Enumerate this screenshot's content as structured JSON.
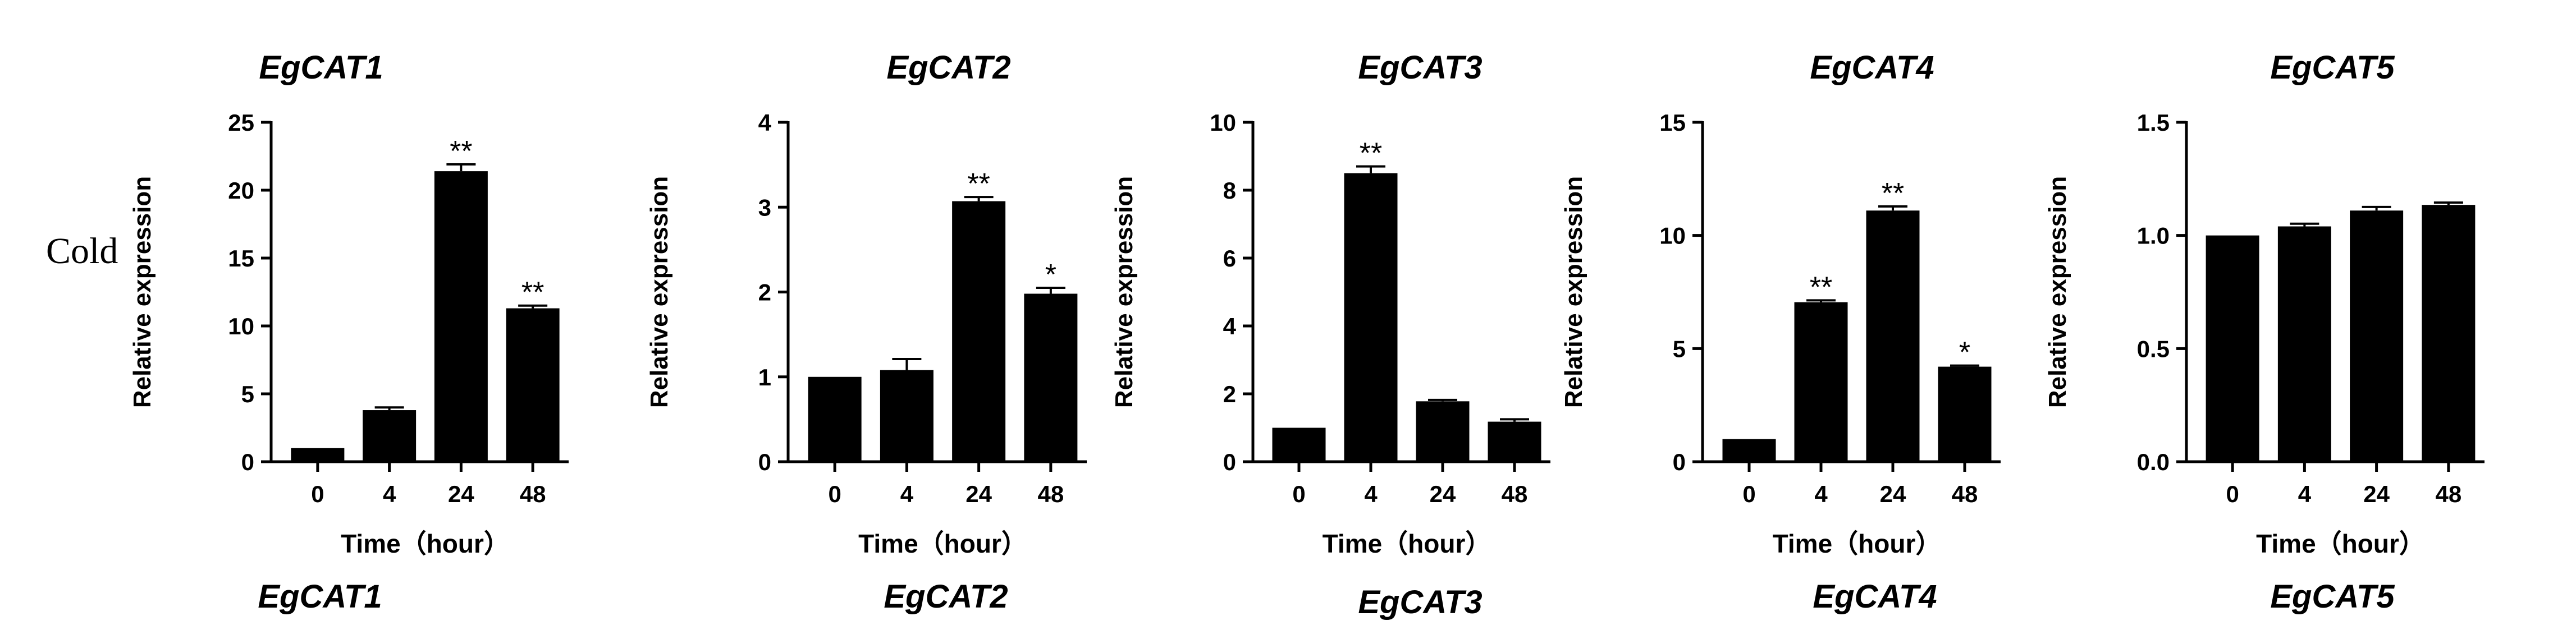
{
  "row_label": "Cold",
  "bottom_titles": [
    "EgCAT1",
    "EgCAT2",
    "EgCAT3",
    "EgCAT4",
    "EgCAT5"
  ],
  "chart_data": [
    {
      "type": "bar",
      "title": "EgCAT1",
      "xlabel": "Time（hour）",
      "ylabel": "Relative expression",
      "categories": [
        "0",
        "4",
        "24",
        "48"
      ],
      "values": [
        1.0,
        3.8,
        21.4,
        11.3
      ],
      "errors": [
        0.0,
        0.2,
        0.5,
        0.2
      ],
      "significance": [
        "",
        "",
        "**",
        "**"
      ],
      "ylim": [
        0,
        25
      ],
      "yticks": [
        0,
        5,
        10,
        15,
        20,
        25
      ],
      "ytick_labels": [
        "0",
        "5",
        "10",
        "15",
        "20",
        "25"
      ]
    },
    {
      "type": "bar",
      "title": "EgCAT2",
      "xlabel": "Time（hour）",
      "ylabel": "Relative expression",
      "categories": [
        "0",
        "4",
        "24",
        "48"
      ],
      "values": [
        1.0,
        1.08,
        3.07,
        1.98
      ],
      "errors": [
        0.0,
        0.13,
        0.05,
        0.07
      ],
      "significance": [
        "",
        "",
        "**",
        "*"
      ],
      "ylim": [
        0,
        4
      ],
      "yticks": [
        0,
        1,
        2,
        3,
        4
      ],
      "ytick_labels": [
        "0",
        "1",
        "2",
        "3",
        "4"
      ]
    },
    {
      "type": "bar",
      "title": "EgCAT3",
      "xlabel": "Time（hour）",
      "ylabel": "Relative expression",
      "categories": [
        "0",
        "4",
        "24",
        "48"
      ],
      "values": [
        1.0,
        8.5,
        1.78,
        1.18
      ],
      "errors": [
        0.0,
        0.2,
        0.04,
        0.07
      ],
      "significance": [
        "",
        "**",
        "",
        ""
      ],
      "ylim": [
        0,
        10
      ],
      "yticks": [
        0,
        2,
        4,
        6,
        8,
        10
      ],
      "ytick_labels": [
        "0",
        "2",
        "4",
        "6",
        "8",
        "10"
      ]
    },
    {
      "type": "bar",
      "title": "EgCAT4",
      "xlabel": "Time（hour）",
      "ylabel": "Relative expression",
      "categories": [
        "0",
        "4",
        "24",
        "48"
      ],
      "values": [
        1.0,
        7.05,
        11.1,
        4.2
      ],
      "errors": [
        0.0,
        0.08,
        0.18,
        0.05
      ],
      "significance": [
        "",
        "**",
        "**",
        "*"
      ],
      "ylim": [
        0,
        15
      ],
      "yticks": [
        0,
        5,
        10,
        15
      ],
      "ytick_labels": [
        "0",
        "5",
        "10",
        "15"
      ]
    },
    {
      "type": "bar",
      "title": "EgCAT5",
      "xlabel": "Time（hour）",
      "ylabel": "Relative expression",
      "categories": [
        "0",
        "4",
        "24",
        "48"
      ],
      "values": [
        1.0,
        1.04,
        1.11,
        1.135
      ],
      "errors": [
        0.0,
        0.012,
        0.016,
        0.01
      ],
      "significance": [
        "",
        "",
        "",
        ""
      ],
      "ylim": [
        0,
        1.5
      ],
      "yticks": [
        0,
        0.5,
        1.0,
        1.5
      ],
      "ytick_labels": [
        "0.0",
        "0.5",
        "1.0",
        "1.5"
      ]
    }
  ]
}
